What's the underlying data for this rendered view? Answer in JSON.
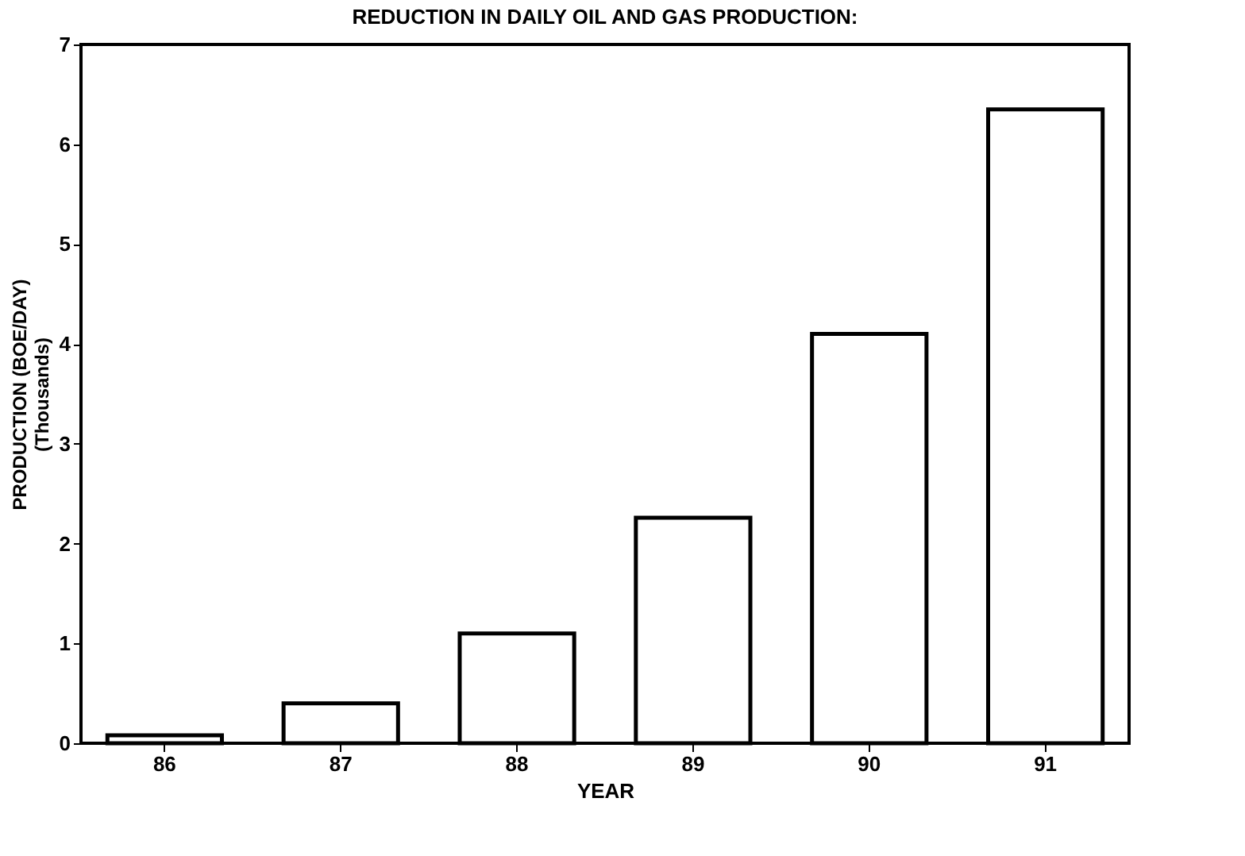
{
  "chart_data": {
    "type": "bar",
    "title": "REDUCTION IN DAILY OIL AND GAS PRODUCTION:",
    "xlabel": "YEAR",
    "ylabel": "PRODUCTION (BOE/DAY)\n(Thousands)",
    "categories": [
      "86",
      "87",
      "88",
      "89",
      "90",
      "91"
    ],
    "values": [
      0.08,
      0.4,
      1.1,
      2.26,
      4.1,
      6.35
    ],
    "color": "#ffffff",
    "ylim": [
      0,
      7
    ],
    "yticks": [
      0,
      1,
      2,
      3,
      4,
      5,
      6,
      7
    ],
    "grid": false
  }
}
